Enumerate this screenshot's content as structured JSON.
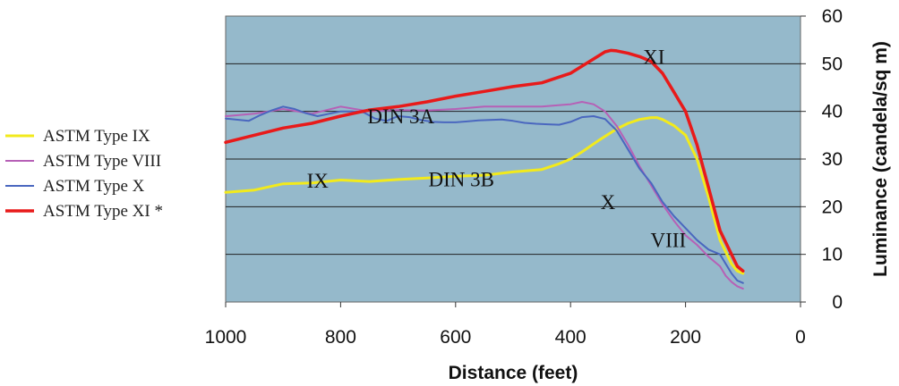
{
  "chart_data": {
    "type": "line",
    "title": "",
    "xlabel": "Distance (feet)",
    "ylabel": "Luminance (candela/sq m)",
    "xlim": [
      1000,
      0
    ],
    "ylim": [
      0,
      60
    ],
    "x_ticks": [
      "1000",
      "800",
      "600",
      "400",
      "200",
      "0"
    ],
    "y_ticks": [
      "0",
      "10",
      "20",
      "30",
      "40",
      "50",
      "60"
    ],
    "grid": "horizontal",
    "y_axis_position": "right",
    "legend_position": "left",
    "plot_background": "#95b9cb",
    "series": [
      {
        "name": "ASTM Type IX",
        "color": "#f2ea1c",
        "x": [
          1000,
          950,
          900,
          850,
          800,
          750,
          700,
          650,
          600,
          550,
          500,
          450,
          420,
          400,
          380,
          350,
          320,
          300,
          280,
          260,
          250,
          240,
          220,
          200,
          180,
          160,
          140,
          120,
          110,
          100
        ],
        "y": [
          23,
          23.5,
          24.8,
          25,
          25.6,
          25.3,
          25.7,
          26,
          26.4,
          26.6,
          27.3,
          27.8,
          29,
          30,
          31.5,
          34,
          36.3,
          37.5,
          38.3,
          38.7,
          38.7,
          38.3,
          37,
          35,
          30,
          22,
          13,
          8,
          6.5,
          6
        ]
      },
      {
        "name": "ASTM Type VIII",
        "color": "#b660b6",
        "x": [
          1000,
          950,
          900,
          850,
          800,
          750,
          700,
          650,
          600,
          550,
          500,
          450,
          400,
          380,
          360,
          340,
          320,
          300,
          280,
          260,
          240,
          220,
          200,
          180,
          160,
          140,
          130,
          120,
          110,
          100
        ],
        "y": [
          39,
          39.5,
          40.5,
          39.5,
          41,
          40,
          40.3,
          40.2,
          40.5,
          41,
          41,
          41,
          41.5,
          42,
          41.5,
          40,
          37,
          33,
          28.5,
          24.5,
          20.5,
          17,
          14,
          12,
          9.5,
          7.5,
          5.5,
          4.2,
          3.3,
          2.8
        ]
      },
      {
        "name": "ASTM Type X",
        "color": "#4a67bf",
        "x": [
          1000,
          960,
          940,
          920,
          900,
          880,
          860,
          840,
          820,
          800,
          780,
          760,
          740,
          720,
          700,
          680,
          660,
          640,
          620,
          600,
          580,
          560,
          540,
          520,
          500,
          480,
          460,
          440,
          420,
          400,
          380,
          360,
          340,
          320,
          300,
          280,
          260,
          240,
          220,
          200,
          180,
          160,
          140,
          130,
          120,
          110,
          100
        ],
        "y": [
          38.5,
          38,
          39.2,
          40.2,
          41,
          40.5,
          39.6,
          39,
          39.5,
          40,
          40,
          39.8,
          38.5,
          38,
          39,
          38.8,
          38.2,
          37.8,
          37.7,
          37.7,
          37.9,
          38.1,
          38.2,
          38.3,
          38,
          37.6,
          37.4,
          37.3,
          37.2,
          37.8,
          38.8,
          39,
          38.4,
          36,
          32,
          28,
          25,
          21,
          18,
          15.5,
          13,
          11,
          10,
          8,
          6,
          4.5,
          4
        ]
      },
      {
        "name": "ASTM Type XI *",
        "color": "#e81a1a",
        "x": [
          1000,
          950,
          900,
          850,
          800,
          750,
          700,
          650,
          600,
          550,
          500,
          450,
          400,
          380,
          360,
          340,
          330,
          320,
          300,
          280,
          260,
          240,
          220,
          200,
          180,
          160,
          140,
          120,
          110,
          100
        ],
        "y": [
          33.5,
          35,
          36.5,
          37.5,
          39,
          40.3,
          41,
          42,
          43.2,
          44.2,
          45.2,
          46,
          48,
          49.5,
          51,
          52.5,
          52.8,
          52.7,
          52.2,
          51.5,
          50.5,
          48,
          44,
          40,
          33,
          24,
          15,
          10,
          7.5,
          6.5
        ]
      }
    ],
    "annotations": [
      {
        "text": "XI",
        "x": 255,
        "y": 50
      },
      {
        "text": "DIN 3A",
        "x": 695,
        "y": 37.5
      },
      {
        "text": "IX",
        "x": 840,
        "y": 24
      },
      {
        "text": "DIN 3B",
        "x": 590,
        "y": 24.3
      },
      {
        "text": "X",
        "x": 335,
        "y": 19.5
      },
      {
        "text": "VIII",
        "x": 230,
        "y": 11.5
      }
    ]
  }
}
